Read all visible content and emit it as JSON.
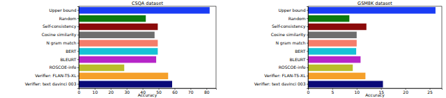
{
  "chart_data": [
    {
      "type": "bar",
      "orientation": "horizontal",
      "title": "CSQA dataset",
      "x_label": "Accuracy",
      "categories": [
        "Upper bound",
        "Random",
        "Self-consistency",
        "Cosine similarity",
        "N gram match",
        "BERT",
        "BLEURT",
        "ROSCOE-info",
        "Verifier: FLAN-T5-XL",
        "Verifier: text davinci 003"
      ],
      "values": [
        82,
        42,
        49.5,
        47.5,
        49.5,
        49.5,
        48.5,
        28.5,
        56,
        58.5
      ],
      "colors": [
        "#1a3cf5",
        "#0d7a0d",
        "#8b0a0a",
        "#6e6e6e",
        "#f47d6a",
        "#16c2d6",
        "#b625c8",
        "#b9bd2a",
        "#f5a02a",
        "#0a0a78"
      ],
      "xlim": [
        0,
        86
      ],
      "xticks": [
        0,
        10,
        20,
        30,
        40,
        50,
        60,
        70,
        80
      ]
    },
    {
      "type": "bar",
      "orientation": "horizontal",
      "title": "GSM8K dataset",
      "x_label": "Accuracy",
      "categories": [
        "Upper bound",
        "Random",
        "Self-consistency",
        "Cosine similarity",
        "N gram match",
        "BERT",
        "BLEURT",
        "ROSCOE-info",
        "Verifier: FLAN-T5-XL",
        "Verifier: text davinci 003"
      ],
      "values": [
        26.2,
        8.5,
        12.0,
        10.0,
        10.0,
        9.9,
        10.8,
        9.2,
        11.8,
        15.4
      ],
      "colors": [
        "#1a3cf5",
        "#0d7a0d",
        "#8b0a0a",
        "#6e6e6e",
        "#f47d6a",
        "#16c2d6",
        "#b625c8",
        "#b9bd2a",
        "#f5a02a",
        "#0a0a78"
      ],
      "xlim": [
        0,
        27.5
      ],
      "xticks": [
        0,
        5,
        10,
        15,
        20,
        25
      ]
    }
  ]
}
